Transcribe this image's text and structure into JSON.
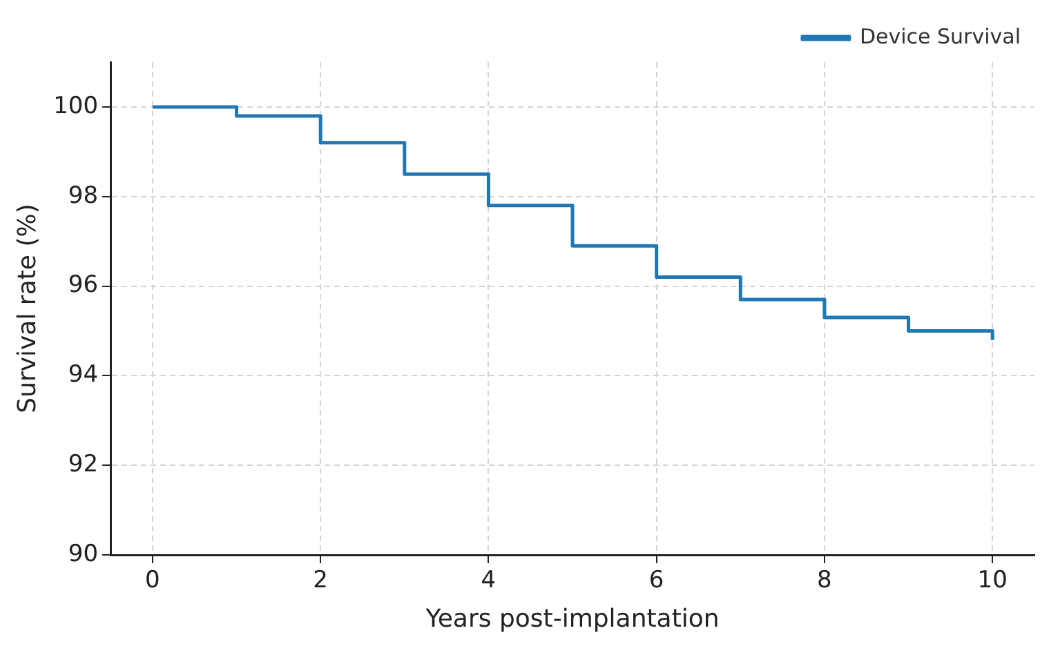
{
  "chart_data": {
    "type": "step",
    "xlabel": "Years post-implantation",
    "ylabel": "Survival rate (%)",
    "x": [
      0,
      1,
      2,
      3,
      4,
      5,
      6,
      7,
      8,
      9,
      10
    ],
    "series": [
      {
        "name": "Device Survival",
        "color": "#1f77b4",
        "values": [
          100,
          99.8,
          99.2,
          98.5,
          97.8,
          96.9,
          96.2,
          95.7,
          95.3,
          95.0,
          94.8
        ]
      }
    ],
    "xlim": [
      -0.5,
      10.5
    ],
    "xticks": [
      0,
      2,
      4,
      6,
      8,
      10
    ],
    "ylim": [
      90,
      101
    ],
    "yticks": [
      90,
      92,
      94,
      96,
      98,
      100
    ],
    "grid": true,
    "legend": "top right",
    "line_style": "solid",
    "marker": "none"
  }
}
